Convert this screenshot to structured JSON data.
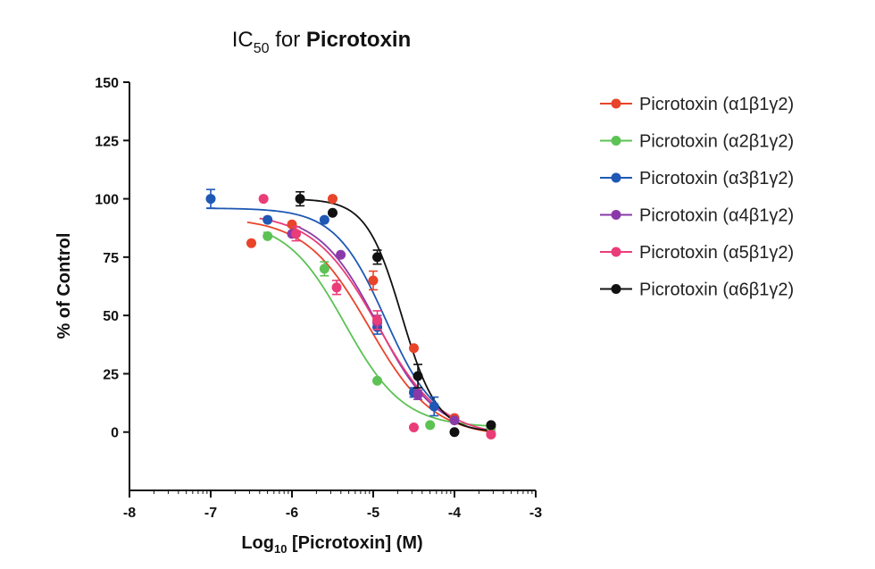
{
  "chart_data": {
    "type": "scatter",
    "title_prefix": "IC",
    "title_sub": "50",
    "title_mid": " for ",
    "title_bold": "Picrotoxin",
    "xlabel_prefix": "Log",
    "xlabel_sub": "10",
    "xlabel_rest": " [Picrotoxin] (M)",
    "ylabel": "% of Control",
    "xlim": [
      -8,
      -3
    ],
    "ylim": [
      -25,
      150
    ],
    "xticks": [
      -8,
      -7,
      -6,
      -5,
      -4,
      -3
    ],
    "xtick_labels": [
      "-8",
      "-7",
      "-6",
      "-5",
      "-4",
      "-3"
    ],
    "yticks": [
      0,
      25,
      50,
      75,
      100,
      125,
      150
    ],
    "ytick_labels": [
      "0",
      "25",
      "50",
      "75",
      "100",
      "125",
      "150"
    ],
    "grid": false,
    "legend_position": "right",
    "series": [
      {
        "name": "Picrotoxin (α1β1γ2)",
        "color": "#e8442a",
        "curve": {
          "top": 92,
          "bottom": -2,
          "logIC50": -5.05,
          "hill": 1.1
        },
        "x": [
          -6.5,
          -6.0,
          -5.5,
          -5.0,
          -4.5,
          -4.0,
          -3.55
        ],
        "y": [
          81,
          89,
          100,
          65,
          36,
          6,
          -1
        ],
        "err": [
          0,
          0,
          0,
          4,
          0,
          0,
          0
        ]
      },
      {
        "name": "Picrotoxin (α2β1γ2)",
        "color": "#5cc254",
        "curve": {
          "top": 91,
          "bottom": 2,
          "logIC50": -5.35,
          "hill": 1.2
        },
        "x": [
          -6.3,
          -5.6,
          -4.95,
          -4.3,
          -3.55
        ],
        "y": [
          84,
          70,
          22,
          3,
          2
        ],
        "err": [
          0,
          3,
          0,
          0,
          0
        ]
      },
      {
        "name": "Picrotoxin (α3β1γ2)",
        "color": "#1f58b5",
        "curve": {
          "top": 96,
          "bottom": 1,
          "logIC50": -4.85,
          "hill": 1.4
        },
        "x": [
          -7.0,
          -6.3,
          -5.6,
          -4.95,
          -4.5,
          -4.25
        ],
        "y": [
          100,
          91,
          91,
          45,
          17,
          11
        ],
        "err": [
          4,
          0,
          0,
          3,
          2,
          4
        ]
      },
      {
        "name": "Picrotoxin (α4β1γ2)",
        "color": "#8a3aa8",
        "curve": {
          "top": 94,
          "bottom": -1,
          "logIC50": -4.95,
          "hill": 1.2
        },
        "x": [
          -6.0,
          -5.4,
          -4.95,
          -4.45,
          -4.0
        ],
        "y": [
          85,
          76,
          47,
          16,
          5
        ],
        "err": [
          0,
          0,
          3,
          2,
          0
        ]
      },
      {
        "name": "Picrotoxin (α5β1γ2)",
        "color": "#ea3c78",
        "curve": {
          "top": 94,
          "bottom": -2,
          "logIC50": -4.95,
          "hill": 1.1
        },
        "x": [
          -6.35,
          -5.95,
          -5.45,
          -4.95,
          -4.5,
          -3.55
        ],
        "y": [
          100,
          85,
          62,
          48,
          2,
          -1
        ],
        "err": [
          0,
          3,
          3,
          4,
          0,
          0
        ]
      },
      {
        "name": "Picrotoxin (α6β1γ2)",
        "color": "#111111",
        "curve": {
          "top": 100,
          "bottom": 0,
          "logIC50": -4.65,
          "hill": 2.0
        },
        "x": [
          -5.9,
          -5.5,
          -4.95,
          -4.45,
          -4.0,
          -3.55
        ],
        "y": [
          100,
          94,
          75,
          24,
          0,
          3
        ],
        "err": [
          3,
          0,
          3,
          5,
          0,
          0
        ]
      }
    ]
  }
}
